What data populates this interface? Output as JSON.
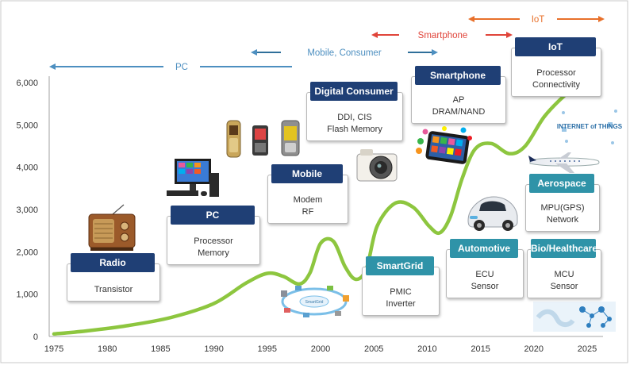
{
  "chart_data": {
    "type": "line",
    "title": "",
    "xlabel": "",
    "ylabel": "",
    "xlim": [
      1975,
      2025
    ],
    "ylim": [
      0,
      6000
    ],
    "x_ticks": [
      "1975",
      "1980",
      "1985",
      "1990",
      "1995",
      "2000",
      "2005",
      "2010",
      "2015",
      "2020",
      "2025"
    ],
    "y_ticks": [
      "0",
      "1,000",
      "2,000",
      "3,000",
      "4,000",
      "5,000",
      "6,000"
    ],
    "grid": false,
    "line_color": "#8dc63f",
    "series": [
      {
        "name": "",
        "points": [
          [
            1975,
            60
          ],
          [
            1978,
            130
          ],
          [
            1982,
            260
          ],
          [
            1986,
            450
          ],
          [
            1990,
            780
          ],
          [
            1993,
            1260
          ],
          [
            1995,
            1490
          ],
          [
            1996.5,
            1420
          ],
          [
            1998,
            1240
          ],
          [
            1999,
            1500
          ],
          [
            2000,
            2200
          ],
          [
            2001.2,
            2250
          ],
          [
            2002.3,
            1650
          ],
          [
            2003.3,
            1350
          ],
          [
            2004.3,
            1600
          ],
          [
            2005.3,
            2600
          ],
          [
            2007,
            3150
          ],
          [
            2008.7,
            3050
          ],
          [
            2010.2,
            2600
          ],
          [
            2011.2,
            2450
          ],
          [
            2012.2,
            2850
          ],
          [
            2013.3,
            3750
          ],
          [
            2014.5,
            4430
          ],
          [
            2016,
            4560
          ],
          [
            2017.7,
            4320
          ],
          [
            2019.2,
            4500
          ],
          [
            2021,
            5200
          ],
          [
            2023,
            5720
          ],
          [
            2024.5,
            5990
          ]
        ]
      }
    ],
    "eras": [
      {
        "label": "PC",
        "color": "#4d8fc0"
      },
      {
        "label": "Mobile, Consumer",
        "color": "#4d8fc0"
      },
      {
        "label": "Smartphone",
        "color": "#e0443a"
      },
      {
        "label": "IoT",
        "color": "#e8702a"
      }
    ]
  },
  "cards": [
    {
      "id": "radio",
      "title": "Radio",
      "lines": [
        "Transistor"
      ]
    },
    {
      "id": "pc",
      "title": "PC",
      "lines": [
        "Processor",
        "Memory"
      ]
    },
    {
      "id": "mobile",
      "title": "Mobile",
      "lines": [
        "Modem",
        "RF"
      ]
    },
    {
      "id": "digital-consumer",
      "title": "Digital Consumer",
      "lines": [
        "DDI, CIS",
        "Flash Memory"
      ]
    },
    {
      "id": "smartgrid",
      "title": "SmartGrid",
      "lines": [
        "PMIC",
        "Inverter"
      ]
    },
    {
      "id": "smartphone",
      "title": "Smartphone",
      "lines": [
        "AP",
        "DRAM/NAND"
      ]
    },
    {
      "id": "automotive",
      "title": "Automotive",
      "lines": [
        "ECU",
        "Sensor"
      ]
    },
    {
      "id": "iot",
      "title": "IoT",
      "lines": [
        "Processor",
        "Connectivity"
      ]
    },
    {
      "id": "aerospace",
      "title": "Aerospace",
      "lines": [
        "MPU(GPS)",
        "Network"
      ]
    },
    {
      "id": "bio-healthcare",
      "title": "Bio/Healthcare",
      "lines": [
        "MCU",
        "Sensor"
      ]
    }
  ],
  "logos": {
    "iot_graphic": "INTERNET of THINGS",
    "smartgrid_graphic": "SmartGrid"
  }
}
